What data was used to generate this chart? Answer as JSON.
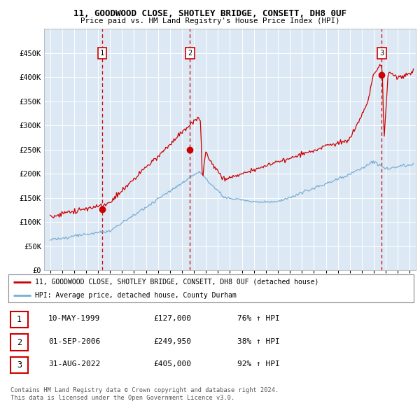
{
  "title1": "11, GOODWOOD CLOSE, SHOTLEY BRIDGE, CONSETT, DH8 0UF",
  "title2": "Price paid vs. HM Land Registry's House Price Index (HPI)",
  "background_color": "#dce9f5",
  "plot_bg_color": "#dce9f5",
  "red_line_color": "#cc0000",
  "blue_line_color": "#7aaed4",
  "vline_dates": [
    1999.36,
    2006.67,
    2022.66
  ],
  "sale_dates": [
    1999.36,
    2006.67,
    2022.66
  ],
  "sale_prices": [
    127000,
    249950,
    405000
  ],
  "legend_line1": "11, GOODWOOD CLOSE, SHOTLEY BRIDGE, CONSETT, DH8 0UF (detached house)",
  "legend_line2": "HPI: Average price, detached house, County Durham",
  "table_rows": [
    {
      "num": "1",
      "date": "10-MAY-1999",
      "price": "£127,000",
      "hpi": "76% ↑ HPI"
    },
    {
      "num": "2",
      "date": "01-SEP-2006",
      "price": "£249,950",
      "hpi": "38% ↑ HPI"
    },
    {
      "num": "3",
      "date": "31-AUG-2022",
      "price": "£405,000",
      "hpi": "92% ↑ HPI"
    }
  ],
  "footer": "Contains HM Land Registry data © Crown copyright and database right 2024.\nThis data is licensed under the Open Government Licence v3.0.",
  "ylim": [
    0,
    500000
  ],
  "xlim_start": 1994.5,
  "xlim_end": 2025.5,
  "yticks": [
    0,
    50000,
    100000,
    150000,
    200000,
    250000,
    300000,
    350000,
    400000,
    450000
  ],
  "ylabel_format": [
    "£0",
    "£50K",
    "£100K",
    "£150K",
    "£200K",
    "£250K",
    "£300K",
    "£350K",
    "£400K",
    "£450K"
  ]
}
